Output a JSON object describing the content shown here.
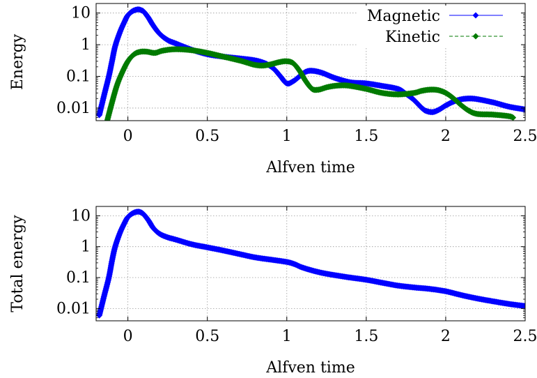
{
  "chart_data": [
    {
      "type": "line",
      "xlabel": "Alfven time",
      "ylabel": "Energy",
      "xlim": [
        -0.2,
        2.5
      ],
      "ylim": [
        0.004,
        20
      ],
      "yscale": "log",
      "xticks": [
        0,
        0.5,
        1,
        1.5,
        2,
        2.5
      ],
      "xtick_labels": [
        "0",
        "0.5",
        "1",
        "1.5",
        "2",
        "2.5"
      ],
      "yticks": [
        0.01,
        0.1,
        1,
        10
      ],
      "ytick_labels": [
        "0.01",
        "0.1",
        "1",
        "10"
      ],
      "grid": true,
      "legend_position": "top-right",
      "series": [
        {
          "name": "Magnetic",
          "color": "#0000ff",
          "marker": "diamond",
          "x": [
            -0.18,
            -0.15,
            -0.12,
            -0.1,
            -0.08,
            -0.05,
            -0.02,
            0.0,
            0.03,
            0.06,
            0.08,
            0.1,
            0.13,
            0.16,
            0.2,
            0.25,
            0.3,
            0.4,
            0.5,
            0.6,
            0.7,
            0.8,
            0.87,
            0.92,
            0.96,
            1.0,
            1.04,
            1.08,
            1.12,
            1.16,
            1.22,
            1.3,
            1.4,
            1.5,
            1.6,
            1.7,
            1.75,
            1.8,
            1.85,
            1.88,
            1.92,
            1.96,
            2.0,
            2.05,
            2.1,
            2.15,
            2.2,
            2.3,
            2.4,
            2.5
          ],
          "values": [
            0.006,
            0.025,
            0.1,
            0.3,
            0.9,
            2.5,
            5.5,
            8.5,
            11.5,
            13,
            12.5,
            11,
            7,
            4,
            2.2,
            1.4,
            1.1,
            0.7,
            0.5,
            0.42,
            0.37,
            0.32,
            0.25,
            0.17,
            0.1,
            0.06,
            0.07,
            0.1,
            0.14,
            0.15,
            0.13,
            0.09,
            0.065,
            0.06,
            0.05,
            0.04,
            0.028,
            0.018,
            0.01,
            0.008,
            0.0075,
            0.009,
            0.012,
            0.016,
            0.019,
            0.02,
            0.019,
            0.015,
            0.011,
            0.009
          ]
        },
        {
          "name": "Kinetic",
          "color": "#007a00",
          "marker": "diamond",
          "x": [
            -0.13,
            -0.1,
            -0.07,
            -0.04,
            0.0,
            0.04,
            0.08,
            0.12,
            0.17,
            0.22,
            0.3,
            0.4,
            0.5,
            0.6,
            0.7,
            0.75,
            0.8,
            0.85,
            0.9,
            0.95,
            1.0,
            1.04,
            1.08,
            1.12,
            1.16,
            1.2,
            1.25,
            1.3,
            1.35,
            1.4,
            1.5,
            1.6,
            1.7,
            1.8,
            1.85,
            1.9,
            1.95,
            2.0,
            2.05,
            2.1,
            2.15,
            2.2,
            2.3,
            2.4,
            2.43
          ],
          "values": [
            0.004,
            0.015,
            0.05,
            0.12,
            0.3,
            0.5,
            0.6,
            0.6,
            0.55,
            0.65,
            0.72,
            0.67,
            0.55,
            0.42,
            0.32,
            0.27,
            0.23,
            0.22,
            0.24,
            0.28,
            0.3,
            0.26,
            0.15,
            0.07,
            0.04,
            0.038,
            0.045,
            0.05,
            0.052,
            0.05,
            0.04,
            0.03,
            0.027,
            0.03,
            0.035,
            0.038,
            0.037,
            0.03,
            0.02,
            0.012,
            0.008,
            0.0065,
            0.0062,
            0.0055,
            0.0048
          ]
        }
      ]
    },
    {
      "type": "line",
      "xlabel": "Alfven time",
      "ylabel": "Total energy",
      "xlim": [
        -0.2,
        2.5
      ],
      "ylim": [
        0.004,
        20
      ],
      "yscale": "log",
      "xticks": [
        0,
        0.5,
        1,
        1.5,
        2,
        2.5
      ],
      "xtick_labels": [
        "0",
        "0.5",
        "1",
        "1.5",
        "2",
        "2.5"
      ],
      "yticks": [
        0.01,
        0.1,
        1,
        10
      ],
      "ytick_labels": [
        "0.01",
        "0.1",
        "1",
        "10"
      ],
      "grid": true,
      "series": [
        {
          "color": "#0000ff",
          "marker": "diamond",
          "x": [
            -0.18,
            -0.15,
            -0.12,
            -0.1,
            -0.08,
            -0.05,
            -0.02,
            0.0,
            0.03,
            0.06,
            0.08,
            0.1,
            0.13,
            0.16,
            0.2,
            0.25,
            0.3,
            0.4,
            0.5,
            0.6,
            0.7,
            0.8,
            0.9,
            1.0,
            1.05,
            1.1,
            1.2,
            1.3,
            1.4,
            1.5,
            1.6,
            1.7,
            1.8,
            1.9,
            2.0,
            2.1,
            2.2,
            2.3,
            2.4,
            2.5
          ],
          "values": [
            0.006,
            0.025,
            0.1,
            0.35,
            1.0,
            2.8,
            6,
            9,
            12,
            13.5,
            13,
            11,
            7,
            4,
            2.6,
            2.0,
            1.7,
            1.2,
            0.95,
            0.75,
            0.58,
            0.45,
            0.38,
            0.32,
            0.27,
            0.21,
            0.15,
            0.12,
            0.1,
            0.085,
            0.068,
            0.055,
            0.048,
            0.043,
            0.036,
            0.027,
            0.021,
            0.017,
            0.014,
            0.012
          ]
        }
      ]
    }
  ]
}
